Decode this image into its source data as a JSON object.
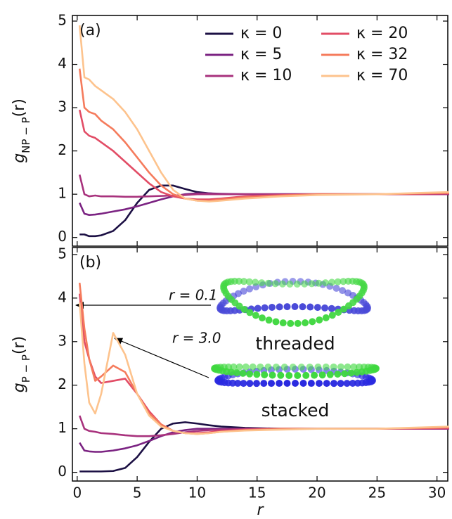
{
  "chart_data": [
    {
      "type": "line",
      "panel_label": "(a)",
      "y_label_main": "g",
      "y_label_sub": "NP − P",
      "y_label_arg": "(r)",
      "x": [
        0.2,
        0.6,
        1,
        1.5,
        2,
        3,
        4,
        5,
        6,
        7,
        8,
        9,
        10,
        11,
        12,
        14,
        17,
        20,
        25,
        31
      ],
      "series": [
        {
          "name": "κ = 0",
          "color": "#1c1044",
          "values": [
            0.07,
            0.07,
            0.03,
            0.03,
            0.05,
            0.15,
            0.4,
            0.8,
            1.1,
            1.2,
            1.2,
            1.12,
            1.05,
            1.02,
            1.0,
            1.0,
            1.0,
            1.0,
            1.0,
            1.0
          ]
        },
        {
          "name": "κ = 5",
          "color": "#7b2382",
          "values": [
            0.8,
            0.55,
            0.52,
            0.53,
            0.55,
            0.6,
            0.65,
            0.72,
            0.8,
            0.88,
            0.95,
            1.0,
            1.02,
            1.02,
            1.01,
            1.0,
            1.0,
            1.0,
            1.0,
            1.0
          ]
        },
        {
          "name": "κ = 10",
          "color": "#a8327d",
          "values": [
            1.45,
            1.0,
            0.95,
            0.97,
            0.95,
            0.95,
            0.94,
            0.94,
            0.95,
            0.96,
            0.97,
            0.98,
            1.0,
            1.0,
            1.0,
            1.0,
            1.0,
            1.0,
            1.0,
            1.0
          ]
        },
        {
          "name": "κ = 20",
          "color": "#e24d66",
          "values": [
            2.95,
            2.45,
            2.35,
            2.3,
            2.2,
            2.0,
            1.75,
            1.5,
            1.25,
            1.05,
            0.95,
            0.9,
            0.88,
            0.88,
            0.9,
            0.95,
            0.98,
            1.0,
            1.0,
            1.02
          ]
        },
        {
          "name": "κ = 32",
          "color": "#f57b5c",
          "values": [
            3.9,
            3.0,
            2.9,
            2.85,
            2.7,
            2.5,
            2.2,
            1.85,
            1.5,
            1.2,
            1.0,
            0.9,
            0.85,
            0.85,
            0.88,
            0.93,
            0.97,
            1.0,
            1.0,
            1.03
          ]
        },
        {
          "name": "κ = 70",
          "color": "#fdc38d",
          "values": [
            4.9,
            3.7,
            3.65,
            3.5,
            3.4,
            3.2,
            2.9,
            2.5,
            2.0,
            1.5,
            1.1,
            0.9,
            0.85,
            0.83,
            0.85,
            0.9,
            0.95,
            0.98,
            1.0,
            1.05
          ]
        }
      ],
      "xlim": [
        -0.4,
        30.9
      ],
      "xticks": [
        0,
        5,
        10,
        15,
        20,
        25,
        30
      ],
      "show_xtick_labels": false,
      "ylim": [
        -0.2,
        5.13
      ],
      "yticks": [
        0,
        1,
        2,
        3,
        4,
        5
      ],
      "legend": "upper right"
    },
    {
      "type": "line",
      "panel_label": "(b)",
      "y_label_main": "g",
      "y_label_sub": "P − P",
      "y_label_arg": "(r)",
      "x_label": "r",
      "x": [
        0.2,
        0.6,
        1,
        1.5,
        2,
        3,
        4,
        5,
        6,
        7,
        8,
        9,
        10,
        11,
        12,
        14,
        17,
        20,
        25,
        31
      ],
      "series": [
        {
          "color": "#1c1044",
          "values": [
            0.02,
            0.02,
            0.02,
            0.02,
            0.02,
            0.03,
            0.1,
            0.35,
            0.7,
            1.0,
            1.12,
            1.15,
            1.12,
            1.08,
            1.05,
            1.02,
            1.0,
            1.0,
            1.0,
            1.0
          ]
        },
        {
          "color": "#7b2382",
          "values": [
            0.68,
            0.5,
            0.48,
            0.47,
            0.47,
            0.5,
            0.55,
            0.62,
            0.72,
            0.83,
            0.92,
            0.97,
            1.0,
            1.0,
            1.0,
            1.0,
            1.0,
            1.0,
            1.0,
            1.0
          ]
        },
        {
          "color": "#a8327d",
          "values": [
            1.3,
            1.0,
            0.95,
            0.93,
            0.9,
            0.88,
            0.85,
            0.83,
            0.83,
            0.85,
            0.88,
            0.92,
            0.95,
            0.97,
            0.98,
            1.0,
            1.0,
            1.0,
            1.0,
            1.0
          ]
        },
        {
          "color": "#e24d66",
          "values": [
            4.1,
            3.0,
            2.6,
            2.2,
            2.05,
            2.1,
            2.15,
            1.8,
            1.4,
            1.1,
            0.95,
            0.9,
            0.9,
            0.92,
            0.95,
            0.98,
            1.0,
            1.0,
            1.0,
            1.02
          ]
        },
        {
          "color": "#f57b5c",
          "values": [
            4.35,
            3.3,
            2.6,
            2.1,
            2.2,
            2.45,
            2.3,
            1.8,
            1.35,
            1.1,
            0.95,
            0.9,
            0.88,
            0.9,
            0.93,
            0.97,
            1.0,
            1.0,
            1.0,
            1.03
          ]
        },
        {
          "color": "#fdc38d",
          "values": [
            3.9,
            2.5,
            1.6,
            1.35,
            1.8,
            3.2,
            2.7,
            1.8,
            1.3,
            1.05,
            0.95,
            0.9,
            0.88,
            0.9,
            0.93,
            0.96,
            0.98,
            1.0,
            1.0,
            1.05
          ]
        }
      ],
      "xlim": [
        -0.4,
        30.9
      ],
      "xticks": [
        0,
        5,
        10,
        15,
        20,
        25,
        30
      ],
      "show_xtick_labels": true,
      "ylim": [
        -0.2,
        5.16
      ],
      "yticks": [
        0,
        1,
        2,
        3,
        4,
        5
      ],
      "annotations": [
        "r = 0.1",
        "r = 3.0",
        "threaded",
        "stacked"
      ]
    }
  ]
}
